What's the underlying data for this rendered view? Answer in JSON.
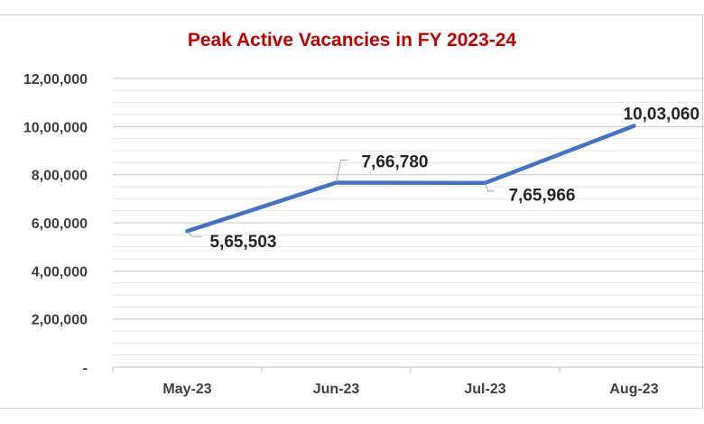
{
  "chart_data": {
    "type": "line",
    "title": "Peak Active Vacancies in FY 2023-24",
    "categories": [
      "May-23",
      "Jun-23",
      "Jul-23",
      "Aug-23"
    ],
    "series": [
      {
        "values": [
          565503,
          766780,
          765966,
          1003060
        ]
      }
    ],
    "data_labels": [
      "5,65,503",
      "7,66,780",
      "7,65,966",
      "10,03,060"
    ],
    "y_ticks": [
      "-",
      "2,00,000",
      "4,00,000",
      "6,00,000",
      "8,00,000",
      "10,00,000",
      "12,00,000"
    ],
    "ylim": [
      0,
      1200000
    ],
    "grid": true,
    "line_color": "#4472c4"
  }
}
